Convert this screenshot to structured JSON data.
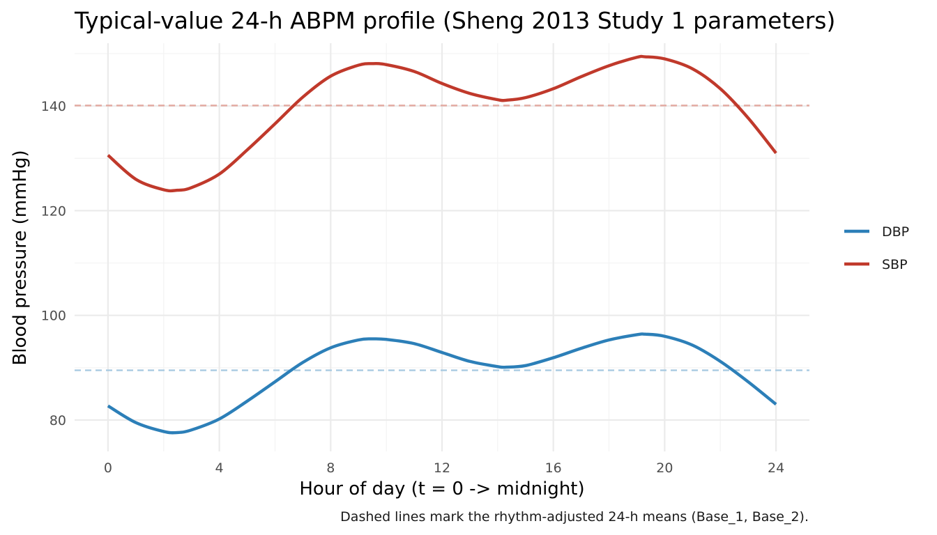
{
  "chart_data": {
    "type": "line",
    "title": "Typical-value 24-h ABPM profile (Sheng 2013 Study 1 parameters)",
    "xlabel": "Hour of day (t = 0 -> midnight)",
    "ylabel": "Blood pressure (mmHg)",
    "caption": "Dashed lines mark the rhythm-adjusted 24-h means (Base_1, Base_2).",
    "xlim": [
      -1.2,
      25.2
    ],
    "ylim": [
      74,
      152
    ],
    "x_ticks": [
      0,
      4,
      8,
      12,
      16,
      20,
      24
    ],
    "y_ticks": [
      80,
      100,
      120,
      140
    ],
    "grid": true,
    "legend_position": "right",
    "series": [
      {
        "name": "DBP",
        "color": "#2c7fb8",
        "x": [
          0,
          1,
          2,
          2.5,
          3,
          4,
          5,
          6,
          7,
          8,
          9,
          9.5,
          10,
          11,
          12,
          13,
          14,
          14.3,
          15,
          16,
          17,
          18,
          19,
          19.3,
          20,
          21,
          22,
          23,
          24
        ],
        "y": [
          82.7,
          79.5,
          77.8,
          77.6,
          78.1,
          80.2,
          83.6,
          87.3,
          91.0,
          93.8,
          95.3,
          95.5,
          95.4,
          94.6,
          92.9,
          91.2,
          90.2,
          90.1,
          90.4,
          91.9,
          93.7,
          95.3,
          96.3,
          96.4,
          96.0,
          94.3,
          91.2,
          87.3,
          83.0
        ]
      },
      {
        "name": "SBP",
        "color": "#c0392b",
        "x": [
          0,
          1,
          2,
          2.5,
          3,
          4,
          5,
          6,
          7,
          8,
          9,
          9.5,
          10,
          11,
          12,
          13,
          14,
          14.3,
          15,
          16,
          17,
          18,
          19,
          19.3,
          20,
          21,
          22,
          23,
          24
        ],
        "y": [
          130.6,
          126.0,
          124.0,
          123.9,
          124.4,
          127.0,
          131.6,
          136.6,
          141.7,
          145.7,
          147.8,
          148.1,
          147.9,
          146.6,
          144.3,
          142.4,
          141.2,
          141.1,
          141.6,
          143.3,
          145.6,
          147.7,
          149.3,
          149.4,
          149.0,
          147.1,
          143.3,
          137.7,
          131.0
        ]
      }
    ],
    "reference_lines": [
      {
        "name": "Base_1",
        "y": 140.1,
        "color": "#e2a89f",
        "style": "dashed"
      },
      {
        "name": "Base_2",
        "y": 89.5,
        "color": "#a9cbe2",
        "style": "dashed"
      }
    ]
  }
}
